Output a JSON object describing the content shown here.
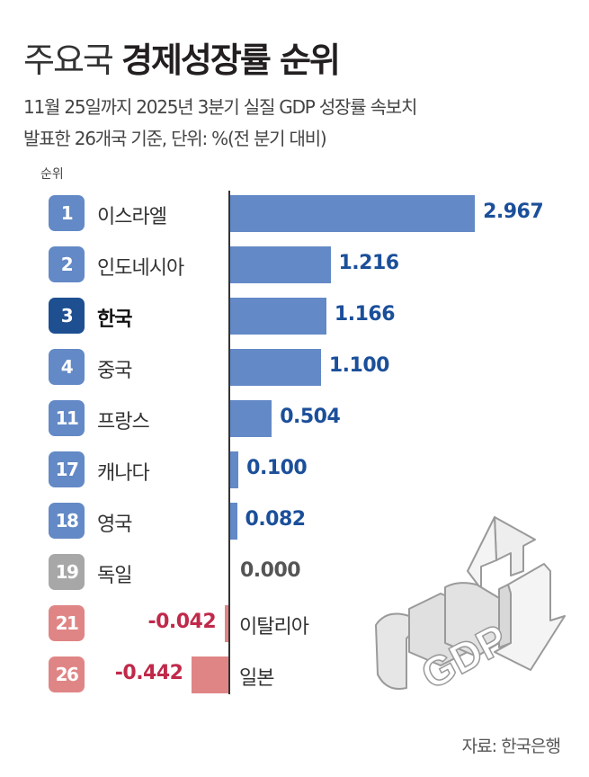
{
  "header": {
    "title_light": "주요국",
    "title_bold": "경제성장률 순위",
    "subtitle_line1": "11월 25일까지 2025년 3분기 실질 GDP 성장률 속보치",
    "subtitle_line2": "발표한 26개국 기준, 단위: %(전 분기 대비)",
    "rank_header": "순위"
  },
  "colors": {
    "positive_bar": "#6389c6",
    "positive_text": "#1b4f9a",
    "highlight_badge": "#1d4f91",
    "zero_badge": "#a7a7a7",
    "zero_text": "#555555",
    "negative_bar": "#e08585",
    "negative_text": "#c0294a"
  },
  "chart_data": {
    "type": "bar",
    "orientation": "horizontal",
    "title": "주요국 경제성장률 순위",
    "subtitle": "11월 25일까지 2025년 3분기 실질 GDP 성장률 속보치 발표한 26개국 기준, 단위: %(전 분기 대비)",
    "xlabel": "",
    "ylabel": "순위",
    "unit": "%",
    "categories": [
      "이스라엘",
      "인도네시아",
      "한국",
      "중국",
      "프랑스",
      "캐나다",
      "영국",
      "독일",
      "이탈리아",
      "일본"
    ],
    "ranks": [
      1,
      2,
      3,
      4,
      11,
      17,
      18,
      19,
      21,
      26
    ],
    "values": [
      2.967,
      1.216,
      1.166,
      1.1,
      0.504,
      0.1,
      0.082,
      0.0,
      -0.042,
      -0.442
    ],
    "value_labels": [
      "2.967",
      "1.216",
      "1.166",
      "1.100",
      "0.504",
      "0.100",
      "0.082",
      "0.000",
      "-0.042",
      "-0.442"
    ],
    "highlight": "한국",
    "grid": false,
    "legend": null
  },
  "rows": [
    {
      "rank": "1",
      "name": "이스라엘",
      "value": "2.967",
      "type": "pos"
    },
    {
      "rank": "2",
      "name": "인도네시아",
      "value": "1.216",
      "type": "pos"
    },
    {
      "rank": "3",
      "name": "한국",
      "value": "1.166",
      "type": "hl"
    },
    {
      "rank": "4",
      "name": "중국",
      "value": "1.100",
      "type": "pos"
    },
    {
      "rank": "11",
      "name": "프랑스",
      "value": "0.504",
      "type": "pos"
    },
    {
      "rank": "17",
      "name": "캐나다",
      "value": "0.100",
      "type": "pos"
    },
    {
      "rank": "18",
      "name": "영국",
      "value": "0.082",
      "type": "pos"
    },
    {
      "rank": "19",
      "name": "독일",
      "value": "0.000",
      "type": "zero"
    },
    {
      "rank": "21",
      "name": "이탈리아",
      "value": "-0.042",
      "type": "neg"
    },
    {
      "rank": "26",
      "name": "일본",
      "value": "-0.442",
      "type": "neg"
    }
  ],
  "illustration": {
    "label": "GDP",
    "icon": "gdp-up-down-arrows-icon"
  },
  "footer": {
    "source": "자료: 한국은행"
  }
}
